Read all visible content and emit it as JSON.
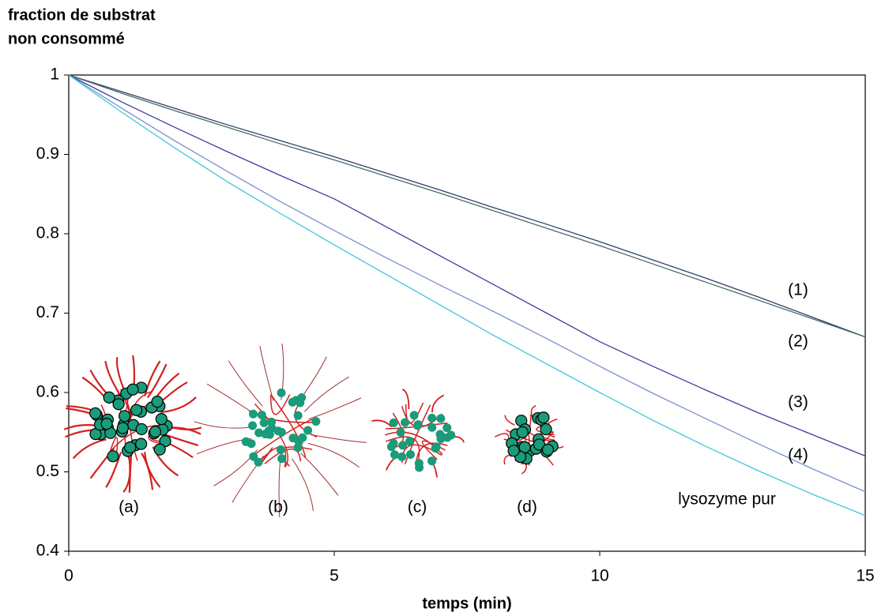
{
  "chart_data": {
    "type": "line",
    "ylabel": [
      "fraction de substrat",
      "non consommé"
    ],
    "xlabel": "temps (min)",
    "x": [
      0,
      1,
      2,
      3,
      4,
      5,
      6,
      7,
      8,
      9,
      10,
      11,
      12,
      13,
      14,
      15
    ],
    "series": [
      {
        "name": "(1)",
        "color": "#2e2e80",
        "values": [
          1,
          0.979,
          0.958,
          0.937,
          0.917,
          0.897,
          0.876,
          0.855,
          0.833,
          0.812,
          0.79,
          0.767,
          0.744,
          0.72,
          0.695,
          0.67
        ]
      },
      {
        "name": "(2)",
        "color": "#3d5f95",
        "values": [
          1,
          0.977,
          0.955,
          0.934,
          0.913,
          0.893,
          0.872,
          0.851,
          0.829,
          0.807,
          0.785,
          0.762,
          0.739,
          0.716,
          0.693,
          0.67
        ]
      },
      {
        "name": "(3)",
        "color": "#7a2fd0",
        "values": [
          1,
          0.966,
          0.934,
          0.903,
          0.873,
          0.844,
          0.808,
          0.772,
          0.736,
          0.7,
          0.664,
          0.633,
          0.603,
          0.574,
          0.547,
          0.52
        ]
      },
      {
        "name": "(4)",
        "color": "#b38be6",
        "values": [
          1,
          0.958,
          0.917,
          0.878,
          0.84,
          0.804,
          0.769,
          0.735,
          0.702,
          0.668,
          0.633,
          0.599,
          0.567,
          0.535,
          0.504,
          0.475
        ]
      },
      {
        "name": "lysozyme pur",
        "color": "#222222",
        "values": [
          1,
          0.953,
          0.908,
          0.865,
          0.825,
          0.786,
          0.748,
          0.71,
          0.672,
          0.636,
          0.6,
          0.565,
          0.532,
          0.501,
          0.472,
          0.445
        ]
      }
    ],
    "line_colors": [
      "#2f3f6e",
      "#4a6a6a",
      "#3b3fa0",
      "#7a8fd0",
      "#40c8d8"
    ],
    "annotations": [
      "(a)",
      "(b)",
      "(c)",
      "(d)"
    ],
    "xlim": [
      0,
      15
    ],
    "xticks": [
      0,
      5,
      10,
      15
    ],
    "ylim": [
      0.4,
      1
    ],
    "yticks": [
      0.4,
      0.5,
      0.6,
      0.7,
      0.8,
      0.9,
      1
    ],
    "grid": false
  }
}
